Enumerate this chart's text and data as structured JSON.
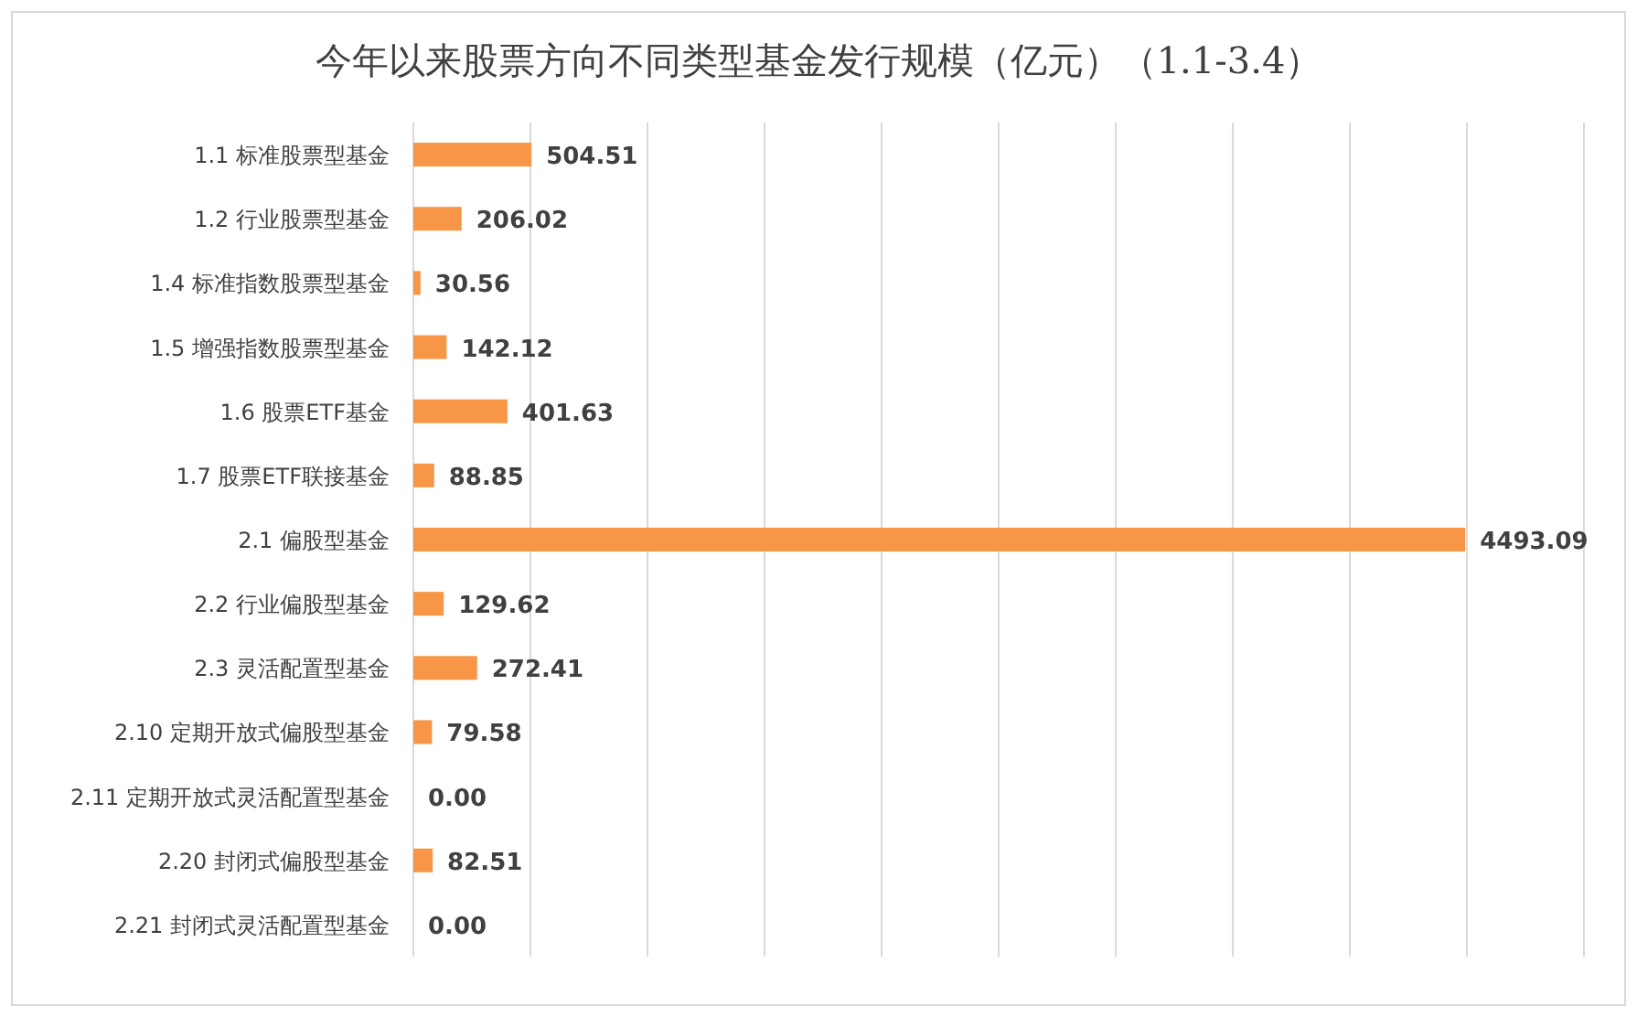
{
  "chart_data": {
    "type": "bar",
    "orientation": "horizontal",
    "title": "今年以来股票方向不同类型基金发行规模（亿元）（1.1-3.4）",
    "categories": [
      "1.1 标准股票型基金",
      "1.2 行业股票型基金",
      "1.4 标准指数股票型基金",
      "1.5 增强指数股票型基金",
      "1.6 股票ETF基金",
      "1.7 股票ETF联接基金",
      "2.1 偏股型基金",
      "2.2 行业偏股型基金",
      "2.3 灵活配置型基金",
      "2.10 定期开放式偏股型基金",
      "2.11 定期开放式灵活配置型基金",
      "2.20 封闭式偏股型基金",
      "2.21 封闭式灵活配置型基金"
    ],
    "values": [
      504.51,
      206.02,
      30.56,
      142.12,
      401.63,
      88.85,
      4493.09,
      129.62,
      272.41,
      79.58,
      0,
      82.51,
      0
    ],
    "value_labels": [
      "504.51",
      "206.02",
      "30.56",
      "142.12",
      "401.63",
      "88.85",
      "4493.09",
      "129.62",
      "272.41",
      "79.58",
      "0.00",
      "82.51",
      "0.00"
    ],
    "color": "#f79646",
    "xlim": [
      0,
      5000
    ],
    "xticks": [
      {
        "value": 0,
        "label": null
      },
      {
        "value": 500,
        "label": null
      },
      {
        "value": 1000,
        "label": null
      },
      {
        "value": 1500,
        "label": null
      },
      {
        "value": 2000,
        "label": null
      },
      {
        "value": 2500,
        "label": null
      },
      {
        "value": 3000,
        "label": null
      },
      {
        "value": 3500,
        "label": null
      },
      {
        "value": 4000,
        "label": null
      },
      {
        "value": 4500,
        "label": null
      },
      {
        "value": 5000,
        "label": null
      }
    ],
    "grid": "x",
    "tick_labels": "y"
  }
}
